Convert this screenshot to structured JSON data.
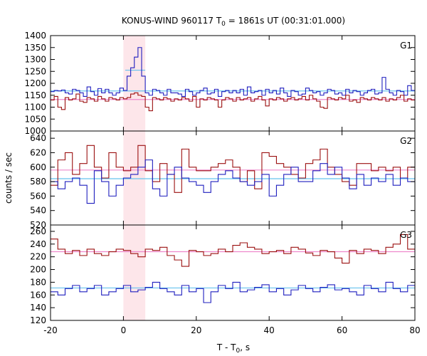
{
  "chart_data": {
    "type": "line",
    "title": {
      "main": "KONUS-WIND 960117 T",
      "sub": "0",
      "rest": " = 1861s UT (00:31:01.000)"
    },
    "xlabel": {
      "main": "T - T",
      "sub": "0",
      "rest": ", s"
    },
    "ylabel": "counts / sec",
    "xlim": [
      -20,
      80
    ],
    "x_ticks": [
      "-20",
      "0",
      "20",
      "40",
      "60",
      "80"
    ],
    "highlight_interval": [
      0,
      6
    ],
    "colors": {
      "blue": "#1f1fbf",
      "red": "#9b1010",
      "background_fit_blue": "#66c2ee",
      "background_fit_red": "#ee88cc",
      "highlight": "#fde6ea"
    },
    "panels": [
      {
        "label": "G1",
        "ylim": [
          1000,
          1400
        ],
        "y_ticks": [
          "1000",
          "1050",
          "1100",
          "1150",
          "1200",
          "1250",
          "1300",
          "1350",
          "1400"
        ],
        "step": 1,
        "series": [
          {
            "color": "blue",
            "values": [
              1165,
              1170,
              1168,
              1172,
              1160,
              1155,
              1175,
              1170,
              1160,
              1145,
              1185,
              1165,
              1150,
              1178,
              1160,
              1175,
              1160,
              1150,
              1160,
              1180,
              1170,
              1230,
              1265,
              1310,
              1350,
              1230,
              1160,
              1150,
              1175,
              1170,
              1160,
              1150,
              1175,
              1160,
              1160,
              1155,
              1145,
              1175,
              1165,
              1150,
              1160,
              1170,
              1180,
              1155,
              1160,
              1175,
              1145,
              1165,
              1170,
              1160,
              1170,
              1160,
              1175,
              1150,
              1185,
              1160,
              1165,
              1170,
              1150,
              1175,
              1160,
              1170,
              1155,
              1180,
              1160,
              1145,
              1170,
              1165,
              1150,
              1155,
              1180,
              1170,
              1160,
              1165,
              1150,
              1160,
              1175,
              1170,
              1155,
              1160,
              1150,
              1175,
              1160,
              1170,
              1165,
              1150,
              1160,
              1170,
              1175,
              1155,
              1160,
              1225,
              1175,
              1160,
              1150,
              1170,
              1165,
              1150,
              1190,
              1170
            ]
          },
          {
            "color": "red",
            "values": [
              1130,
              1145,
              1100,
              1090,
              1140,
              1130,
              1135,
              1155,
              1125,
              1120,
              1140,
              1135,
              1125,
              1145,
              1135,
              1125,
              1140,
              1135,
              1130,
              1140,
              1135,
              1140,
              1155,
              1160,
              1150,
              1145,
              1100,
              1085,
              1140,
              1135,
              1130,
              1140,
              1135,
              1125,
              1135,
              1130,
              1140,
              1135,
              1125,
              1145,
              1100,
              1135,
              1130,
              1140,
              1135,
              1130,
              1100,
              1130,
              1140,
              1135,
              1125,
              1140,
              1130,
              1135,
              1140,
              1125,
              1135,
              1145,
              1130,
              1105,
              1135,
              1130,
              1140,
              1135,
              1125,
              1135,
              1140,
              1130,
              1135,
              1145,
              1130,
              1150,
              1135,
              1125,
              1100,
              1095,
              1140,
              1135,
              1130,
              1140,
              1135,
              1150,
              1125,
              1130,
              1120,
              1140,
              1135,
              1130,
              1140,
              1135,
              1130,
              1140,
              1125,
              1135,
              1130,
              1140,
              1150,
              1125,
              1135,
              1130
            ]
          }
        ],
        "fit_lines": [
          {
            "color": "background_fit_blue",
            "value": 1168
          },
          {
            "color": "background_fit_red",
            "value": 1132
          }
        ],
        "burst_fit": {
          "color": "background_fit_blue",
          "x_range": [
            0.5,
            6
          ],
          "value": 1255
        }
      },
      {
        "label": "G2",
        "ylim": [
          520,
          650
        ],
        "y_ticks": [
          "520",
          "540",
          "560",
          "580",
          "600",
          "620",
          "640"
        ],
        "step": 2,
        "series": [
          {
            "color": "red",
            "values": [
              575,
              610,
              620,
              590,
              605,
              630,
              600,
              585,
              620,
              600,
              595,
              600,
              630,
              595,
              580,
              605,
              590,
              565,
              625,
              600,
              595,
              595,
              600,
              605,
              610,
              600,
              580,
              595,
              570,
              620,
              615,
              605,
              600,
              590,
              585,
              605,
              610,
              625,
              600,
              590,
              580,
              575,
              605,
              605,
              595,
              600,
              595,
              600,
              585,
              600,
              600
            ]
          },
          {
            "color": "blue",
            "values": [
              580,
              570,
              580,
              585,
              575,
              550,
              595,
              580,
              560,
              575,
              585,
              590,
              600,
              610,
              570,
              560,
              590,
              600,
              585,
              580,
              575,
              565,
              580,
              590,
              595,
              585,
              580,
              575,
              580,
              590,
              560,
              575,
              590,
              600,
              580,
              580,
              595,
              605,
              590,
              600,
              585,
              570,
              590,
              575,
              585,
              580,
              590,
              575,
              585,
              580,
              585
            ]
          }
        ],
        "fit_lines": [
          {
            "color": "background_fit_red",
            "value": 596
          },
          {
            "color": "background_fit_blue",
            "value": 584
          }
        ]
      },
      {
        "label": "G3",
        "ylim": [
          120,
          270
        ],
        "y_ticks": [
          "120",
          "140",
          "160",
          "180",
          "200",
          "220",
          "240",
          "260"
        ],
        "step": 2,
        "series": [
          {
            "color": "red",
            "values": [
              248,
              232,
              225,
              230,
              222,
              232,
              225,
              222,
              228,
              232,
              230,
              225,
              220,
              232,
              230,
              235,
              222,
              215,
              205,
              230,
              228,
              222,
              225,
              232,
              228,
              238,
              242,
              235,
              232,
              225,
              228,
              230,
              225,
              235,
              232,
              226,
              222,
              230,
              228,
              218,
              210,
              230,
              225,
              232,
              230,
              225,
              235,
              240,
              255,
              232,
              230,
              228,
              240,
              225,
              232,
              235,
              230,
              228,
              220,
              225,
              262,
              228,
              235,
              245,
              230,
              225
            ]
          },
          {
            "color": "blue",
            "values": [
              165,
              160,
              170,
              175,
              165,
              170,
              175,
              160,
              165,
              170,
              175,
              165,
              168,
              172,
              180,
              170,
              165,
              160,
              175,
              165,
              170,
              148,
              165,
              175,
              170,
              180,
              165,
              168,
              172,
              176,
              165,
              170,
              160,
              168,
              175,
              170,
              165,
              172,
              176,
              168,
              170,
              165,
              160,
              175,
              170,
              165,
              180,
              170,
              165,
              175,
              168,
              170,
              175,
              165,
              172,
              170,
              165,
              168,
              172,
              176,
              170,
              165,
              175,
              168,
              170,
              175
            ]
          }
        ],
        "fit_lines": [
          {
            "color": "background_fit_red",
            "value": 228
          },
          {
            "color": "background_fit_blue",
            "value": 171
          }
        ]
      }
    ]
  }
}
